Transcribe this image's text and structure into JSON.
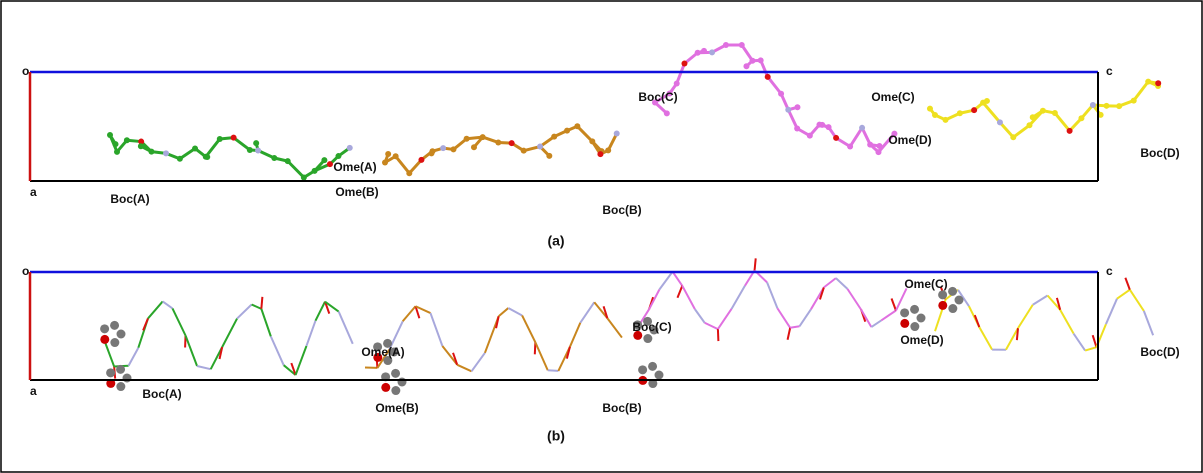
{
  "panels": [
    {
      "label": "(a)",
      "axis_labels": {
        "origin": "o",
        "a": "a",
        "c": "c"
      },
      "annotations": [
        "Boc(A)",
        "Ome(A)",
        "Ome(B)",
        "Boc(B)",
        "Boc(C)",
        "Ome(C)",
        "Ome(D)",
        "Boc(D)"
      ]
    },
    {
      "label": "(b)",
      "axis_labels": {
        "origin": "o",
        "a": "a",
        "c": "c"
      },
      "annotations": [
        "Boc(A)",
        "Ome(A)",
        "Ome(B)",
        "Boc(B)",
        "Boc(C)",
        "Ome(C)",
        "Ome(D)",
        "Boc(D)"
      ]
    }
  ]
}
